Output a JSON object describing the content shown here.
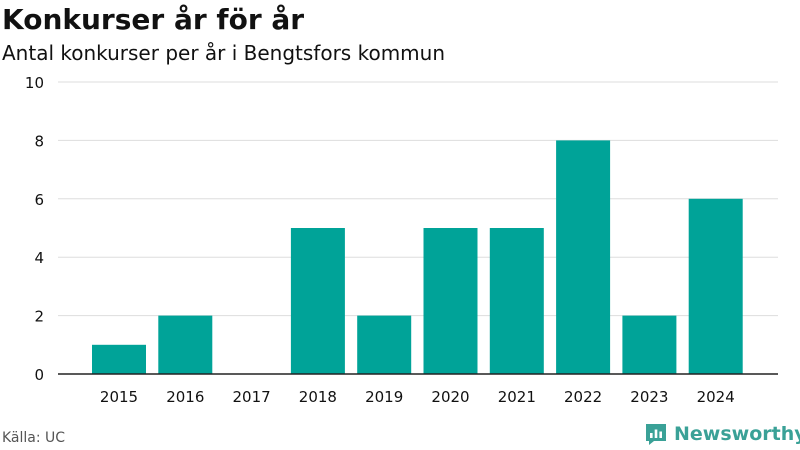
{
  "header": {
    "title": "Konkurser år för år",
    "subtitle": "Antal konkurser per år i Bengtsfors kommun"
  },
  "footer": {
    "source": "Källa: UC",
    "brand_name": "Newsworthy",
    "brand_icon": "newsworthy-logo-icon"
  },
  "colors": {
    "bar": "#00a398",
    "grid": "#dddddd",
    "axis": "#222222",
    "text": "#111111",
    "brand": "#3aa197"
  },
  "chart_data": {
    "type": "bar",
    "categories": [
      "2015",
      "2016",
      "2017",
      "2018",
      "2019",
      "2020",
      "2021",
      "2022",
      "2023",
      "2024"
    ],
    "values": [
      1,
      2,
      0,
      5,
      2,
      5,
      5,
      8,
      2,
      6
    ],
    "title": "Konkurser år för år",
    "subtitle": "Antal konkurser per år i Bengtsfors kommun",
    "xlabel": "",
    "ylabel": "",
    "ylim": [
      0,
      10
    ],
    "yticks": [
      0,
      2,
      4,
      6,
      8,
      10
    ],
    "grid": true,
    "legend": "none"
  }
}
